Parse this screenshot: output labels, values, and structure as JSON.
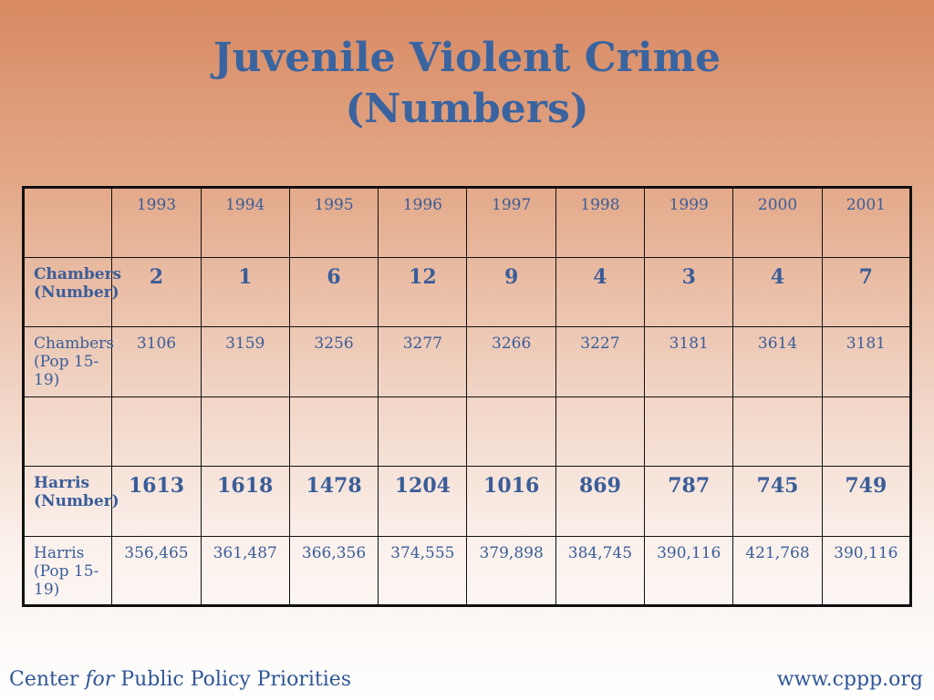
{
  "title": {
    "line1": "Juvenile Violent Crime",
    "line2": "(Numbers)"
  },
  "table": {
    "years": [
      "1993",
      "1994",
      "1995",
      "1996",
      "1997",
      "1998",
      "1999",
      "2000",
      "2001"
    ],
    "rows": [
      {
        "label": "Chambers\n(Number)",
        "values": [
          "2",
          "1",
          "6",
          "12",
          "9",
          "4",
          "3",
          "4",
          "7"
        ],
        "bold": true
      },
      {
        "label": "Chambers\n(Pop 15-19)",
        "values": [
          "3106",
          "3159",
          "3256",
          "3277",
          "3266",
          "3227",
          "3181",
          "3614",
          "3181"
        ],
        "bold": false
      },
      {
        "label": "",
        "values": [
          "",
          "",
          "",
          "",
          "",
          "",
          "",
          "",
          ""
        ],
        "bold": false
      },
      {
        "label": "Harris\n(Number)",
        "values": [
          "1613",
          "1618",
          "1478",
          "1204",
          "1016",
          "869",
          "787",
          "745",
          "749"
        ],
        "bold": true
      },
      {
        "label": "Harris\n(Pop 15-19)",
        "values": [
          "356,465",
          "361,487",
          "366,356",
          "374,555",
          "379,898",
          "384,745",
          "390,116",
          "421,768",
          "390,116"
        ],
        "bold": false
      }
    ]
  },
  "footer": {
    "left_pre": "Center ",
    "left_italic": "for",
    "left_post": " Public Policy Priorities",
    "right": "www.cppp.org"
  }
}
